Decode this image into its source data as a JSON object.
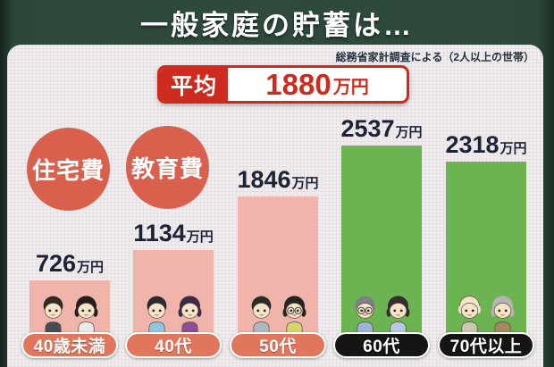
{
  "banner": {
    "title": "一般家庭の貯蓄は…"
  },
  "source_note": "総務省家計調査による（2人以上の世帯）",
  "average_box": {
    "label": "平均",
    "value": "1880",
    "unit": "万円"
  },
  "cost_badges": [
    {
      "label": "住宅費"
    },
    {
      "label": "教育費"
    }
  ],
  "chart_data": {
    "type": "bar",
    "title": "一般家庭の貯蓄は…",
    "source_note": "総務省家計調査による（2人以上の世帯）",
    "categories": [
      "40歳未満",
      "40代",
      "50代",
      "60代",
      "70代以上"
    ],
    "values": [
      726,
      1134,
      1846,
      2537,
      2318
    ],
    "unit": "万円",
    "average_value": 1880,
    "bar_colors": [
      "#f0b4ab",
      "#f0b4ab",
      "#f0b4ab",
      "#6cb352",
      "#6cb352"
    ],
    "pill_colors": [
      "#e0765c",
      "#e0765c",
      "#e0765c",
      "#171514",
      "#171514"
    ],
    "annotations": [
      "住宅費",
      "教育費"
    ],
    "ylim": [
      0,
      2700
    ],
    "grid": false,
    "legend": false,
    "axis_labels": "none"
  },
  "figures": [
    {
      "category": "40歳未満",
      "people": [
        {
          "name": "young-man-figure",
          "hairstyle": "male",
          "hair": "#33291f",
          "shirt": "#464b58",
          "glasses": false
        },
        {
          "name": "young-woman-figure",
          "hairstyle": "female",
          "hair": "#241f1d",
          "shirt": "#e9e9ec",
          "glasses": false
        }
      ]
    },
    {
      "category": "40代",
      "people": [
        {
          "name": "forties-man-figure",
          "hairstyle": "male",
          "hair": "#2a2a31",
          "shirt": "#8fc6e0",
          "glasses": false
        },
        {
          "name": "forties-woman-figure",
          "hairstyle": "female",
          "hair": "#3d2a44",
          "shirt": "#8e4d96",
          "glasses": false
        }
      ]
    },
    {
      "category": "50代",
      "people": [
        {
          "name": "fifties-man-figure",
          "hairstyle": "male",
          "hair": "#2d2926",
          "shirt": "#aeb8bf",
          "glasses": false
        },
        {
          "name": "fifties-woman-figure",
          "hairstyle": "female",
          "hair": "#282321",
          "shirt": "#d5d46b",
          "glasses": true
        }
      ]
    },
    {
      "category": "60代",
      "people": [
        {
          "name": "sixties-man-figure",
          "hairstyle": "male",
          "hair": "#7e8083",
          "shirt": "#9db4d6",
          "glasses": true
        },
        {
          "name": "sixties-woman-figure",
          "hairstyle": "female",
          "hair": "#322f2d",
          "shirt": "#bac9e6",
          "glasses": false
        }
      ]
    },
    {
      "category": "70代以上",
      "people": [
        {
          "name": "elderly-man-figure",
          "hairstyle": "bald",
          "hair": "#e6e1d4",
          "shirt": "#cfc9b2",
          "glasses": false
        },
        {
          "name": "elderly-woman-figure",
          "hairstyle": "female",
          "hair": "#b5b3b4",
          "shirt": "#a58a5f",
          "glasses": false
        }
      ]
    }
  ],
  "colors": {
    "banner_green": "#2f4b3d",
    "panel_bg": "#f0edee",
    "accent_red": "#cf2a1e",
    "badge_red": "#d8604c",
    "bar_pink": "#f0b4ab",
    "bar_green": "#6cb352",
    "pill_coral": "#e0765c",
    "pill_black": "#171514",
    "value_text": "#1c2335"
  }
}
